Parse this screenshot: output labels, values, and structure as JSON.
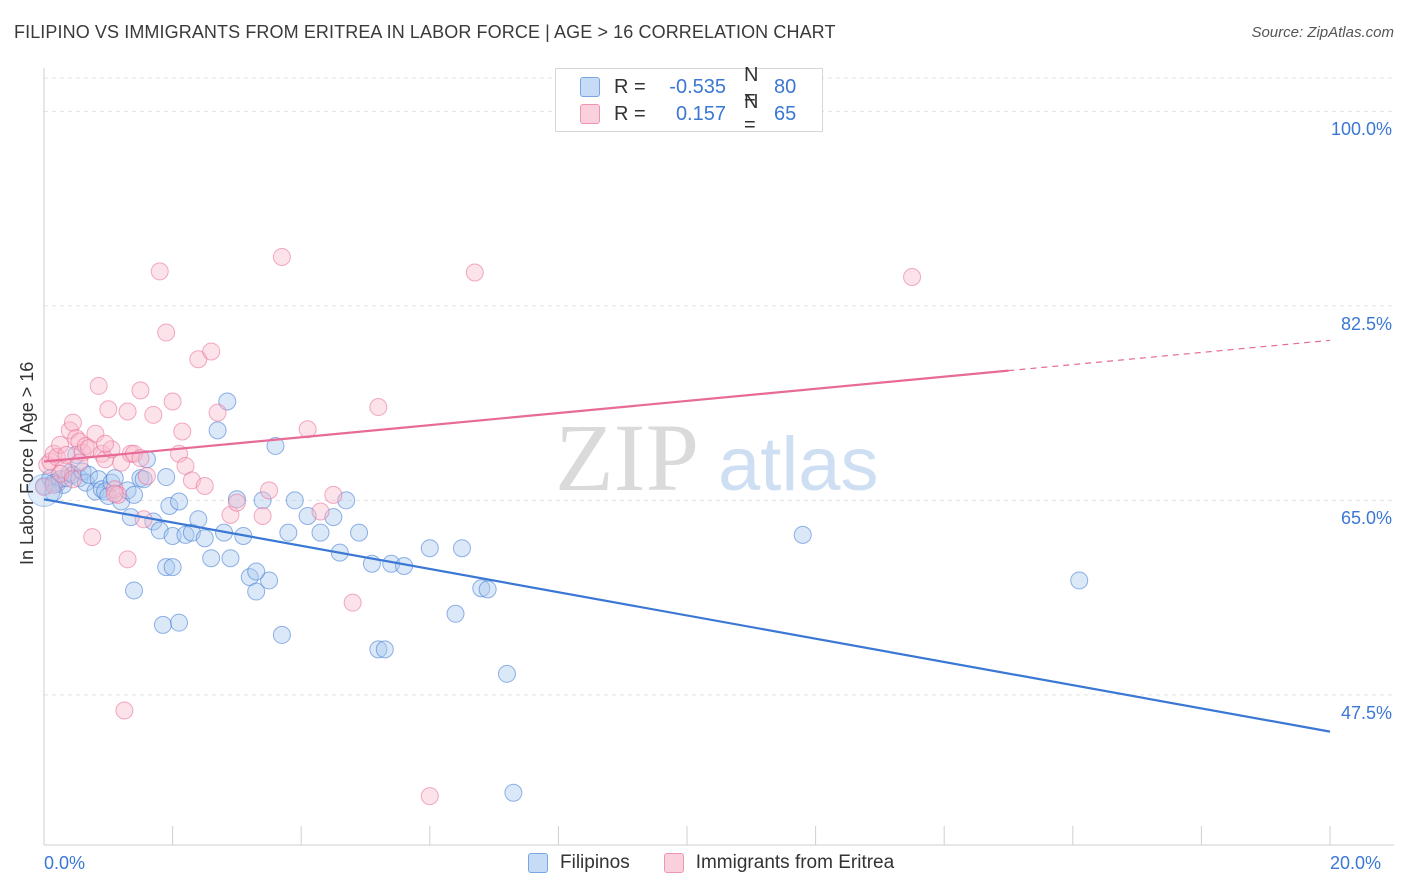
{
  "title": "FILIPINO VS IMMIGRANTS FROM ERITREA IN LABOR FORCE | AGE > 16 CORRELATION CHART",
  "source": "Source: ZipAtlas.com",
  "legend": {
    "rows": [
      {
        "r_label": "R =",
        "r_value": "-0.535",
        "n_label": "N =",
        "n_value": "80",
        "color": "#a9c8ef"
      },
      {
        "r_label": "R =",
        "r_value": "0.157",
        "n_label": "N =",
        "n_value": "65",
        "color": "#f7b9cb"
      }
    ]
  },
  "bottom_legend": [
    "Filipinos",
    "Immigrants from Eritrea"
  ],
  "chart_data": {
    "type": "scatter",
    "title": "FILIPINO VS IMMIGRANTS FROM ERITREA IN LABOR FORCE | AGE > 16 CORRELATION CHART",
    "xlabel": "",
    "ylabel": "In Labor Force | Age > 16",
    "xlim": [
      0,
      20
    ],
    "ylim": [
      34.0,
      103.0
    ],
    "x_ticks": [
      "0.0%",
      "20.0%"
    ],
    "y_ticks": [
      {
        "value": 100.0,
        "label": "100.0%"
      },
      {
        "value": 82.5,
        "label": "82.5%"
      },
      {
        "value": 65.0,
        "label": "65.0%"
      },
      {
        "value": 47.5,
        "label": "47.5%"
      }
    ],
    "grid": true,
    "watermark": "ZIPatlas",
    "series": [
      {
        "name": "Filipinos",
        "color": "#3b77d4",
        "fill": "#a9c8ef",
        "trend": {
          "x0": 0.0,
          "y0": 65.1,
          "x1": 20.0,
          "y1": 44.2,
          "dashed_from": null
        },
        "points": [
          [
            0.0,
            66.3
          ],
          [
            0.1,
            67.0
          ],
          [
            0.15,
            66.6
          ],
          [
            0.2,
            66.5
          ],
          [
            0.25,
            66.9
          ],
          [
            0.3,
            66.4
          ],
          [
            0.35,
            67.0
          ],
          [
            0.4,
            67.5
          ],
          [
            0.45,
            67.3
          ],
          [
            0.5,
            69.1
          ],
          [
            0.55,
            67.0
          ],
          [
            0.6,
            67.6
          ],
          [
            0.65,
            66.6
          ],
          [
            0.7,
            67.3
          ],
          [
            0.8,
            65.8
          ],
          [
            0.85,
            66.9
          ],
          [
            0.9,
            66.0
          ],
          [
            0.95,
            65.8
          ],
          [
            1.0,
            65.4
          ],
          [
            1.05,
            66.6
          ],
          [
            1.1,
            67.0
          ],
          [
            1.2,
            64.9
          ],
          [
            1.3,
            65.9
          ],
          [
            1.35,
            63.5
          ],
          [
            1.4,
            65.5
          ],
          [
            1.5,
            67.0
          ],
          [
            1.55,
            66.9
          ],
          [
            1.6,
            68.7
          ],
          [
            1.7,
            63.1
          ],
          [
            1.8,
            62.3
          ],
          [
            1.9,
            67.1
          ],
          [
            1.95,
            64.5
          ],
          [
            2.0,
            61.8
          ],
          [
            2.1,
            64.9
          ],
          [
            2.2,
            61.9
          ],
          [
            2.3,
            62.1
          ],
          [
            2.4,
            63.3
          ],
          [
            2.5,
            61.6
          ],
          [
            2.6,
            59.8
          ],
          [
            2.7,
            71.3
          ],
          [
            2.8,
            62.1
          ],
          [
            2.85,
            73.9
          ],
          [
            2.9,
            59.8
          ],
          [
            3.0,
            65.1
          ],
          [
            3.1,
            61.8
          ],
          [
            3.2,
            58.1
          ],
          [
            3.3,
            56.8
          ],
          [
            3.4,
            65.0
          ],
          [
            3.5,
            57.8
          ],
          [
            3.6,
            69.9
          ],
          [
            3.7,
            52.9
          ],
          [
            3.8,
            62.1
          ],
          [
            3.9,
            65.0
          ],
          [
            4.1,
            63.6
          ],
          [
            4.3,
            62.1
          ],
          [
            4.5,
            63.5
          ],
          [
            4.6,
            60.3
          ],
          [
            4.7,
            65.0
          ],
          [
            4.9,
            62.1
          ],
          [
            5.1,
            59.3
          ],
          [
            5.2,
            51.6
          ],
          [
            5.3,
            51.6
          ],
          [
            5.4,
            59.3
          ],
          [
            5.6,
            59.1
          ],
          [
            6.0,
            60.7
          ],
          [
            6.4,
            54.8
          ],
          [
            6.5,
            60.7
          ],
          [
            6.8,
            57.1
          ],
          [
            6.9,
            57.0
          ],
          [
            7.2,
            49.4
          ],
          [
            7.3,
            38.7
          ],
          [
            11.8,
            61.9
          ],
          [
            16.1,
            57.8
          ],
          [
            1.4,
            56.9
          ],
          [
            1.9,
            59.0
          ],
          [
            2.0,
            59.0
          ],
          [
            1.85,
            53.8
          ],
          [
            2.1,
            54.0
          ],
          [
            3.3,
            58.6
          ],
          [
            0.15,
            65.7
          ]
        ]
      },
      {
        "name": "Immigrants from Eritrea",
        "color": "#e76a97",
        "fill": "#f7b9cb",
        "trend": {
          "x0": 0.0,
          "y0": 68.5,
          "x1": 20.0,
          "y1": 79.4,
          "dashed_from": 15.0
        },
        "points": [
          [
            0.0,
            66.2
          ],
          [
            0.05,
            68.2
          ],
          [
            0.1,
            68.5
          ],
          [
            0.15,
            69.2
          ],
          [
            0.2,
            68.9
          ],
          [
            0.25,
            70.0
          ],
          [
            0.3,
            67.8
          ],
          [
            0.35,
            69.1
          ],
          [
            0.4,
            71.3
          ],
          [
            0.45,
            72.0
          ],
          [
            0.5,
            70.6
          ],
          [
            0.55,
            70.3
          ],
          [
            0.6,
            69.3
          ],
          [
            0.65,
            69.9
          ],
          [
            0.7,
            69.7
          ],
          [
            0.75,
            61.7
          ],
          [
            0.8,
            71.0
          ],
          [
            0.85,
            75.3
          ],
          [
            0.9,
            69.2
          ],
          [
            0.95,
            68.7
          ],
          [
            1.0,
            73.2
          ],
          [
            1.05,
            69.6
          ],
          [
            1.1,
            66.0
          ],
          [
            1.15,
            65.5
          ],
          [
            1.2,
            68.4
          ],
          [
            1.25,
            46.1
          ],
          [
            1.3,
            73.0
          ],
          [
            1.35,
            69.2
          ],
          [
            1.4,
            69.2
          ],
          [
            1.5,
            74.9
          ],
          [
            1.55,
            63.3
          ],
          [
            1.6,
            67.2
          ],
          [
            1.7,
            72.7
          ],
          [
            1.8,
            85.6
          ],
          [
            1.9,
            80.1
          ],
          [
            2.0,
            73.9
          ],
          [
            2.1,
            69.2
          ],
          [
            2.15,
            71.2
          ],
          [
            2.2,
            68.1
          ],
          [
            2.3,
            66.8
          ],
          [
            2.4,
            77.7
          ],
          [
            2.6,
            78.4
          ],
          [
            2.7,
            72.9
          ],
          [
            2.9,
            63.7
          ],
          [
            3.0,
            64.8
          ],
          [
            3.4,
            63.6
          ],
          [
            3.7,
            86.9
          ],
          [
            4.1,
            71.4
          ],
          [
            4.3,
            64.0
          ],
          [
            4.8,
            55.8
          ],
          [
            5.2,
            73.4
          ],
          [
            6.0,
            38.4
          ],
          [
            6.7,
            85.5
          ],
          [
            13.5,
            85.1
          ],
          [
            0.15,
            66.4
          ],
          [
            0.25,
            67.4
          ],
          [
            0.45,
            66.9
          ],
          [
            0.55,
            68.4
          ],
          [
            1.1,
            65.6
          ],
          [
            1.3,
            59.7
          ],
          [
            0.95,
            70.1
          ],
          [
            1.5,
            68.8
          ],
          [
            2.5,
            66.3
          ],
          [
            3.5,
            65.9
          ],
          [
            4.5,
            65.5
          ]
        ]
      }
    ]
  }
}
